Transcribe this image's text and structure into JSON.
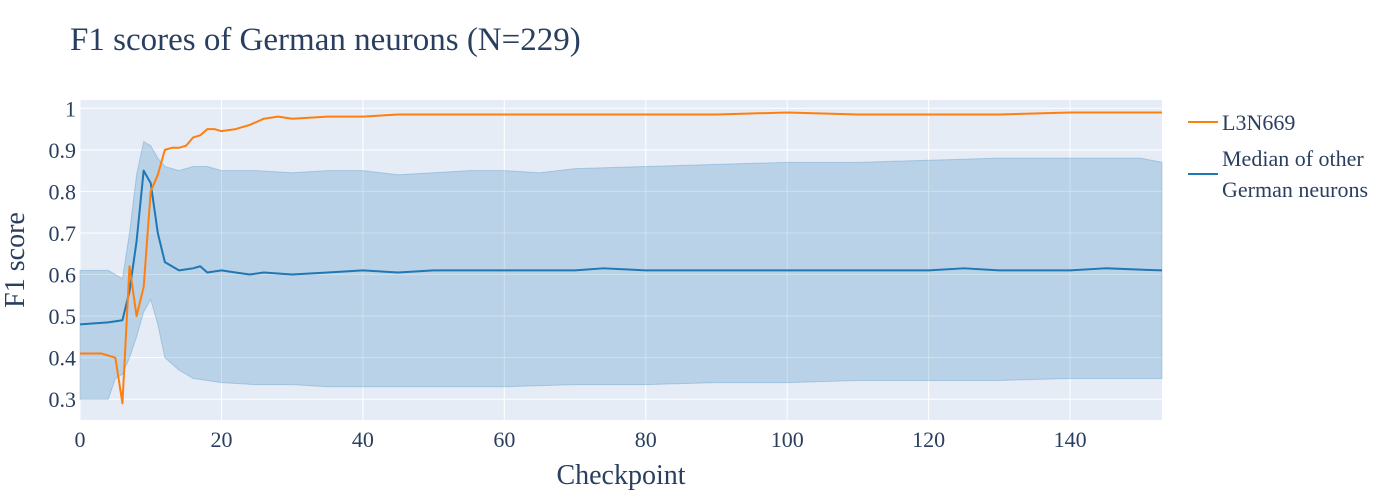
{
  "chart_data": {
    "type": "line",
    "title": "F1 scores of German neurons (N=229)",
    "xlabel": "Checkpoint",
    "ylabel": "F1 score",
    "xlim": [
      0,
      153
    ],
    "ylim": [
      0.25,
      1.02
    ],
    "x_ticks": [
      0,
      20,
      40,
      60,
      80,
      100,
      120,
      140
    ],
    "y_ticks": [
      0.3,
      0.4,
      0.5,
      0.6,
      0.7,
      0.8,
      0.9,
      1
    ],
    "y_tick_labels": [
      "0.3",
      "0.4",
      "0.5",
      "0.6",
      "0.7",
      "0.8",
      "0.9",
      "1"
    ],
    "x_tick_labels": [
      "0",
      "20",
      "40",
      "60",
      "80",
      "100",
      "120",
      "140"
    ],
    "grid": true,
    "legend_position": "right",
    "legend": [
      "L3N669",
      "Median of other German neurons"
    ],
    "colors": {
      "l3n669": "#ff7f0e",
      "median": "#1f77b4",
      "band_fill": "rgba(31,119,180,0.22)",
      "plot_bg": "#e5ecf6",
      "grid": "#ffffff"
    },
    "series": [
      {
        "name": "L3N669",
        "points": [
          [
            0,
            0.41
          ],
          [
            3,
            0.41
          ],
          [
            5,
            0.4
          ],
          [
            6,
            0.29
          ],
          [
            7,
            0.62
          ],
          [
            8,
            0.5
          ],
          [
            9,
            0.57
          ],
          [
            10,
            0.8
          ],
          [
            11,
            0.84
          ],
          [
            12,
            0.9
          ],
          [
            13,
            0.905
          ],
          [
            14,
            0.905
          ],
          [
            15,
            0.91
          ],
          [
            16,
            0.93
          ],
          [
            17,
            0.935
          ],
          [
            18,
            0.95
          ],
          [
            19,
            0.95
          ],
          [
            20,
            0.945
          ],
          [
            22,
            0.95
          ],
          [
            24,
            0.96
          ],
          [
            26,
            0.975
          ],
          [
            28,
            0.98
          ],
          [
            30,
            0.975
          ],
          [
            35,
            0.98
          ],
          [
            40,
            0.98
          ],
          [
            45,
            0.985
          ],
          [
            50,
            0.985
          ],
          [
            60,
            0.985
          ],
          [
            70,
            0.985
          ],
          [
            80,
            0.985
          ],
          [
            90,
            0.985
          ],
          [
            100,
            0.99
          ],
          [
            110,
            0.985
          ],
          [
            120,
            0.985
          ],
          [
            130,
            0.985
          ],
          [
            140,
            0.99
          ],
          [
            153,
            0.99
          ]
        ]
      },
      {
        "name": "Median of other German neurons",
        "points": [
          [
            0,
            0.48
          ],
          [
            4,
            0.485
          ],
          [
            6,
            0.49
          ],
          [
            7,
            0.56
          ],
          [
            8,
            0.68
          ],
          [
            9,
            0.85
          ],
          [
            10,
            0.82
          ],
          [
            11,
            0.7
          ],
          [
            12,
            0.63
          ],
          [
            14,
            0.61
          ],
          [
            16,
            0.615
          ],
          [
            17,
            0.62
          ],
          [
            18,
            0.605
          ],
          [
            20,
            0.61
          ],
          [
            22,
            0.605
          ],
          [
            24,
            0.6
          ],
          [
            26,
            0.605
          ],
          [
            30,
            0.6
          ],
          [
            35,
            0.605
          ],
          [
            40,
            0.61
          ],
          [
            45,
            0.605
          ],
          [
            50,
            0.61
          ],
          [
            60,
            0.61
          ],
          [
            70,
            0.61
          ],
          [
            74,
            0.615
          ],
          [
            80,
            0.61
          ],
          [
            90,
            0.61
          ],
          [
            100,
            0.61
          ],
          [
            110,
            0.61
          ],
          [
            120,
            0.61
          ],
          [
            125,
            0.615
          ],
          [
            130,
            0.61
          ],
          [
            140,
            0.61
          ],
          [
            145,
            0.615
          ],
          [
            153,
            0.61
          ]
        ]
      }
    ],
    "band": {
      "name": "Interquartile range of other German neurons",
      "upper": [
        [
          0,
          0.61
        ],
        [
          4,
          0.61
        ],
        [
          6,
          0.59
        ],
        [
          7,
          0.7
        ],
        [
          8,
          0.84
        ],
        [
          9,
          0.92
        ],
        [
          10,
          0.91
        ],
        [
          11,
          0.88
        ],
        [
          12,
          0.86
        ],
        [
          14,
          0.85
        ],
        [
          16,
          0.86
        ],
        [
          18,
          0.86
        ],
        [
          20,
          0.85
        ],
        [
          25,
          0.85
        ],
        [
          30,
          0.845
        ],
        [
          35,
          0.85
        ],
        [
          40,
          0.85
        ],
        [
          45,
          0.84
        ],
        [
          50,
          0.845
        ],
        [
          55,
          0.85
        ],
        [
          60,
          0.85
        ],
        [
          65,
          0.845
        ],
        [
          70,
          0.855
        ],
        [
          80,
          0.86
        ],
        [
          90,
          0.865
        ],
        [
          100,
          0.87
        ],
        [
          110,
          0.87
        ],
        [
          120,
          0.875
        ],
        [
          130,
          0.88
        ],
        [
          140,
          0.88
        ],
        [
          150,
          0.88
        ],
        [
          153,
          0.87
        ]
      ],
      "lower": [
        [
          0,
          0.3
        ],
        [
          4,
          0.3
        ],
        [
          5,
          0.35
        ],
        [
          6,
          0.36
        ],
        [
          7,
          0.4
        ],
        [
          8,
          0.45
        ],
        [
          9,
          0.51
        ],
        [
          10,
          0.54
        ],
        [
          11,
          0.48
        ],
        [
          12,
          0.4
        ],
        [
          14,
          0.37
        ],
        [
          16,
          0.35
        ],
        [
          18,
          0.345
        ],
        [
          20,
          0.34
        ],
        [
          25,
          0.335
        ],
        [
          30,
          0.335
        ],
        [
          35,
          0.33
        ],
        [
          40,
          0.33
        ],
        [
          45,
          0.33
        ],
        [
          50,
          0.33
        ],
        [
          55,
          0.33
        ],
        [
          60,
          0.33
        ],
        [
          70,
          0.335
        ],
        [
          80,
          0.335
        ],
        [
          90,
          0.34
        ],
        [
          100,
          0.34
        ],
        [
          110,
          0.345
        ],
        [
          120,
          0.345
        ],
        [
          130,
          0.345
        ],
        [
          140,
          0.35
        ],
        [
          153,
          0.35
        ]
      ]
    }
  }
}
